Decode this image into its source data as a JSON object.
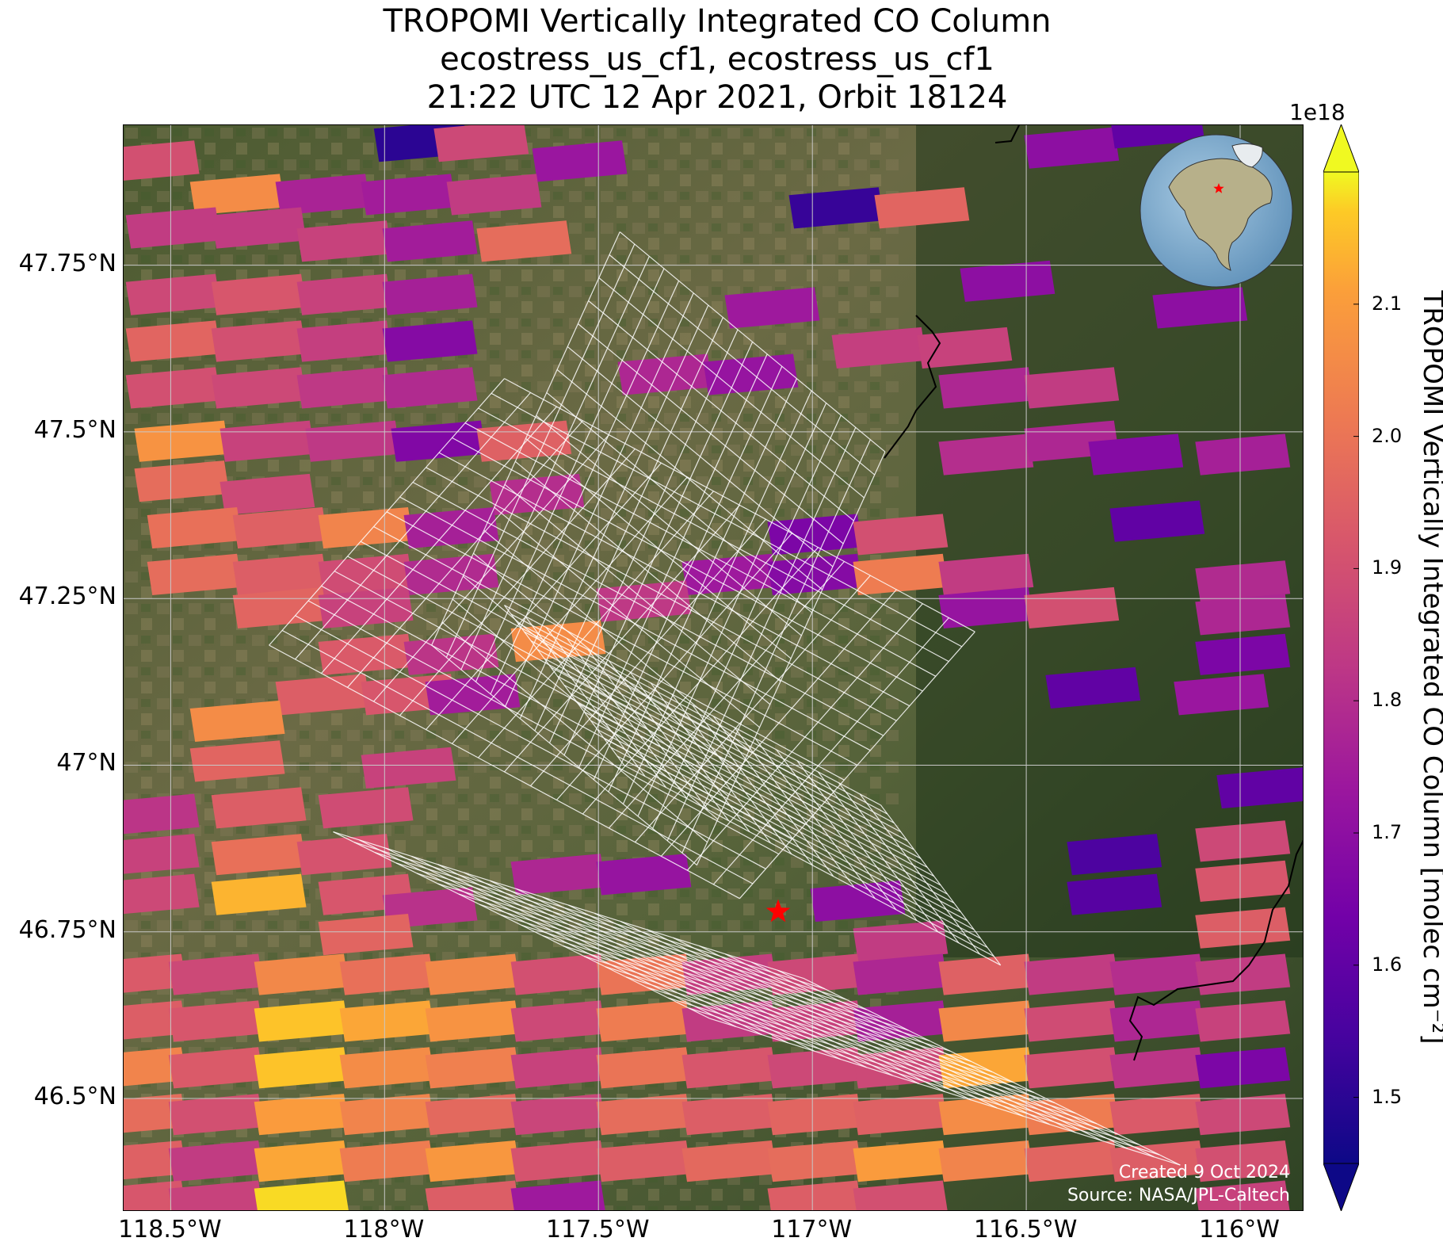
{
  "title": {
    "line1": "TROPOMI Vertically Integrated CO Column",
    "line2": "ecostress_us_cf1, ecostress_us_cf1",
    "line3": "21:22 UTC 12 Apr 2021, Orbit 18124"
  },
  "map": {
    "extent": {
      "lon_min": -118.61,
      "lon_max": -115.85,
      "lat_min": 46.33,
      "lat_max": 47.96
    },
    "background": "satellite imagery",
    "gridlines": true,
    "gridline_color": "#c8c8c8",
    "lat_ticks": [
      {
        "value": 47.75,
        "label": "47.75°N"
      },
      {
        "value": 47.5,
        "label": "47.5°N"
      },
      {
        "value": 47.25,
        "label": "47.25°N"
      },
      {
        "value": 47.0,
        "label": "47°N"
      },
      {
        "value": 46.75,
        "label": "46.75°N"
      },
      {
        "value": 46.5,
        "label": "46.5°N"
      }
    ],
    "lon_ticks": [
      {
        "value": -118.5,
        "label": "118.5°W"
      },
      {
        "value": -118.0,
        "label": "118°W"
      },
      {
        "value": -117.5,
        "label": "117.5°W"
      },
      {
        "value": -117.0,
        "label": "117°W"
      },
      {
        "value": -116.5,
        "label": "116.5°W"
      },
      {
        "value": -116.0,
        "label": "116°W"
      }
    ],
    "site_marker": {
      "lon": -117.08,
      "lat": 46.78,
      "symbol": "star",
      "color": "#ff0000"
    },
    "overlay_grid": "ECOSTRESS footprint grid (white outlines)"
  },
  "chart_data": {
    "type": "heatmap",
    "title": "TROPOMI Vertically Integrated CO Column",
    "xlabel": "",
    "ylabel": "",
    "colorbar_label": "TROPOMI Vertically Integrated CO Column [molec cm⁻²]",
    "colorbar_exponent": "1e18",
    "colormap": "plasma",
    "vmin": 1.45,
    "vmax": 2.2,
    "extend": "both",
    "colorbar_ticks": [
      1.5,
      1.6,
      1.7,
      1.8,
      1.9,
      2.0,
      2.1
    ],
    "colorbar_tick_labels": [
      "1.5",
      "1.6",
      "1.7",
      "1.8",
      "1.9",
      "2.0",
      "2.1"
    ],
    "pixel_lon_step": 0.21,
    "pixel_lat_step": 0.05,
    "pixels": [
      {
        "lon": -118.55,
        "lat": 47.9,
        "value": 1.9
      },
      {
        "lon": -118.35,
        "lat": 47.85,
        "value": 2.06
      },
      {
        "lon": -118.15,
        "lat": 47.85,
        "value": 1.77
      },
      {
        "lon": -117.95,
        "lat": 47.85,
        "value": 1.75
      },
      {
        "lon": -117.92,
        "lat": 47.93,
        "value": 1.5
      },
      {
        "lon": -117.78,
        "lat": 47.93,
        "value": 1.88
      },
      {
        "lon": -117.55,
        "lat": 47.9,
        "value": 1.73
      },
      {
        "lon": -117.75,
        "lat": 47.85,
        "value": 1.84
      },
      {
        "lon": -116.95,
        "lat": 47.83,
        "value": 1.52
      },
      {
        "lon": -116.75,
        "lat": 47.83,
        "value": 1.96
      },
      {
        "lon": -116.4,
        "lat": 47.92,
        "value": 1.7
      },
      {
        "lon": -116.2,
        "lat": 47.95,
        "value": 1.6
      },
      {
        "lon": -118.5,
        "lat": 47.8,
        "value": 1.84
      },
      {
        "lon": -118.3,
        "lat": 47.8,
        "value": 1.84
      },
      {
        "lon": -118.1,
        "lat": 47.78,
        "value": 1.86
      },
      {
        "lon": -117.9,
        "lat": 47.78,
        "value": 1.75
      },
      {
        "lon": -117.68,
        "lat": 47.78,
        "value": 1.98
      },
      {
        "lon": -118.5,
        "lat": 47.7,
        "value": 1.88
      },
      {
        "lon": -118.3,
        "lat": 47.7,
        "value": 1.92
      },
      {
        "lon": -118.1,
        "lat": 47.7,
        "value": 1.86
      },
      {
        "lon": -117.9,
        "lat": 47.7,
        "value": 1.76
      },
      {
        "lon": -117.1,
        "lat": 47.68,
        "value": 1.74
      },
      {
        "lon": -116.55,
        "lat": 47.72,
        "value": 1.7
      },
      {
        "lon": -116.1,
        "lat": 47.68,
        "value": 1.7
      },
      {
        "lon": -118.5,
        "lat": 47.63,
        "value": 1.96
      },
      {
        "lon": -118.3,
        "lat": 47.63,
        "value": 1.9
      },
      {
        "lon": -118.1,
        "lat": 47.63,
        "value": 1.85
      },
      {
        "lon": -117.9,
        "lat": 47.63,
        "value": 1.68
      },
      {
        "lon": -117.35,
        "lat": 47.58,
        "value": 1.78
      },
      {
        "lon": -117.15,
        "lat": 47.58,
        "value": 1.72
      },
      {
        "lon": -116.85,
        "lat": 47.62,
        "value": 1.85
      },
      {
        "lon": -116.65,
        "lat": 47.62,
        "value": 1.86
      },
      {
        "lon": -118.5,
        "lat": 47.56,
        "value": 1.9
      },
      {
        "lon": -118.3,
        "lat": 47.56,
        "value": 1.88
      },
      {
        "lon": -118.1,
        "lat": 47.56,
        "value": 1.83
      },
      {
        "lon": -117.9,
        "lat": 47.56,
        "value": 1.79
      },
      {
        "lon": -116.6,
        "lat": 47.56,
        "value": 1.78
      },
      {
        "lon": -116.4,
        "lat": 47.56,
        "value": 1.84
      },
      {
        "lon": -118.48,
        "lat": 47.48,
        "value": 2.08
      },
      {
        "lon": -118.28,
        "lat": 47.48,
        "value": 1.86
      },
      {
        "lon": -118.08,
        "lat": 47.48,
        "value": 1.83
      },
      {
        "lon": -117.88,
        "lat": 47.48,
        "value": 1.67
      },
      {
        "lon": -117.68,
        "lat": 47.48,
        "value": 1.95
      },
      {
        "lon": -116.6,
        "lat": 47.46,
        "value": 1.8
      },
      {
        "lon": -116.4,
        "lat": 47.48,
        "value": 1.78
      },
      {
        "lon": -116.25,
        "lat": 47.46,
        "value": 1.68
      },
      {
        "lon": -116.0,
        "lat": 47.46,
        "value": 1.76
      },
      {
        "lon": -118.48,
        "lat": 47.42,
        "value": 1.98
      },
      {
        "lon": -118.28,
        "lat": 47.4,
        "value": 1.88
      },
      {
        "lon": -117.65,
        "lat": 47.4,
        "value": 1.8
      },
      {
        "lon": -118.45,
        "lat": 47.35,
        "value": 1.99
      },
      {
        "lon": -118.25,
        "lat": 47.35,
        "value": 1.95
      },
      {
        "lon": -118.05,
        "lat": 47.35,
        "value": 2.04
      },
      {
        "lon": -117.85,
        "lat": 47.35,
        "value": 1.76
      },
      {
        "lon": -117.0,
        "lat": 47.34,
        "value": 1.66
      },
      {
        "lon": -116.8,
        "lat": 47.34,
        "value": 1.9
      },
      {
        "lon": -116.2,
        "lat": 47.36,
        "value": 1.6
      },
      {
        "lon": -118.45,
        "lat": 47.28,
        "value": 1.98
      },
      {
        "lon": -118.25,
        "lat": 47.28,
        "value": 1.94
      },
      {
        "lon": -118.05,
        "lat": 47.28,
        "value": 1.89
      },
      {
        "lon": -117.85,
        "lat": 47.28,
        "value": 1.79
      },
      {
        "lon": -117.2,
        "lat": 47.28,
        "value": 1.74
      },
      {
        "lon": -117.0,
        "lat": 47.28,
        "value": 1.68
      },
      {
        "lon": -116.8,
        "lat": 47.28,
        "value": 2.02
      },
      {
        "lon": -116.6,
        "lat": 47.28,
        "value": 1.84
      },
      {
        "lon": -116.0,
        "lat": 47.27,
        "value": 1.79
      },
      {
        "lon": -118.25,
        "lat": 47.23,
        "value": 1.96
      },
      {
        "lon": -118.05,
        "lat": 47.23,
        "value": 1.86
      },
      {
        "lon": -117.4,
        "lat": 47.24,
        "value": 1.83
      },
      {
        "lon": -116.6,
        "lat": 47.23,
        "value": 1.72
      },
      {
        "lon": -116.4,
        "lat": 47.23,
        "value": 1.9
      },
      {
        "lon": -116.0,
        "lat": 47.22,
        "value": 1.78
      },
      {
        "lon": -118.05,
        "lat": 47.16,
        "value": 1.93
      },
      {
        "lon": -117.85,
        "lat": 47.16,
        "value": 1.82
      },
      {
        "lon": -117.6,
        "lat": 47.18,
        "value": 2.06
      },
      {
        "lon": -118.15,
        "lat": 47.1,
        "value": 1.94
      },
      {
        "lon": -117.95,
        "lat": 47.1,
        "value": 1.92
      },
      {
        "lon": -117.8,
        "lat": 47.1,
        "value": 1.75
      },
      {
        "lon": -116.0,
        "lat": 47.16,
        "value": 1.66
      },
      {
        "lon": -116.35,
        "lat": 47.11,
        "value": 1.6
      },
      {
        "lon": -116.05,
        "lat": 47.1,
        "value": 1.73
      },
      {
        "lon": -118.35,
        "lat": 47.06,
        "value": 2.06
      },
      {
        "lon": -118.35,
        "lat": 47.0,
        "value": 1.96
      },
      {
        "lon": -117.95,
        "lat": 46.99,
        "value": 1.86
      },
      {
        "lon": -118.55,
        "lat": 46.92,
        "value": 1.82
      },
      {
        "lon": -118.3,
        "lat": 46.93,
        "value": 1.94
      },
      {
        "lon": -118.05,
        "lat": 46.93,
        "value": 1.89
      },
      {
        "lon": -115.95,
        "lat": 46.96,
        "value": 1.6
      },
      {
        "lon": -118.55,
        "lat": 46.86,
        "value": 1.86
      },
      {
        "lon": -118.3,
        "lat": 46.86,
        "value": 1.99
      },
      {
        "lon": -118.1,
        "lat": 46.86,
        "value": 1.91
      },
      {
        "lon": -117.6,
        "lat": 46.83,
        "value": 1.78
      },
      {
        "lon": -117.4,
        "lat": 46.83,
        "value": 1.72
      },
      {
        "lon": -116.3,
        "lat": 46.86,
        "value": 1.56
      },
      {
        "lon": -116.0,
        "lat": 46.88,
        "value": 1.88
      },
      {
        "lon": -118.55,
        "lat": 46.8,
        "value": 1.88
      },
      {
        "lon": -118.3,
        "lat": 46.8,
        "value": 2.14
      },
      {
        "lon": -118.05,
        "lat": 46.8,
        "value": 1.92
      },
      {
        "lon": -117.9,
        "lat": 46.78,
        "value": 1.81
      },
      {
        "lon": -116.9,
        "lat": 46.79,
        "value": 1.7
      },
      {
        "lon": -116.3,
        "lat": 46.8,
        "value": 1.58
      },
      {
        "lon": -116.0,
        "lat": 46.82,
        "value": 1.92
      },
      {
        "lon": -118.05,
        "lat": 46.74,
        "value": 1.96
      },
      {
        "lon": -116.8,
        "lat": 46.73,
        "value": 1.84
      },
      {
        "lon": -116.0,
        "lat": 46.75,
        "value": 1.94
      },
      {
        "lon": -118.58,
        "lat": 46.68,
        "value": 1.93
      },
      {
        "lon": -118.4,
        "lat": 46.68,
        "value": 1.88
      },
      {
        "lon": -118.2,
        "lat": 46.68,
        "value": 2.05
      },
      {
        "lon": -118.0,
        "lat": 46.68,
        "value": 1.99
      },
      {
        "lon": -117.8,
        "lat": 46.68,
        "value": 2.05
      },
      {
        "lon": -117.6,
        "lat": 46.68,
        "value": 1.9
      },
      {
        "lon": -117.4,
        "lat": 46.68,
        "value": 2.0
      },
      {
        "lon": -117.2,
        "lat": 46.68,
        "value": 1.85
      },
      {
        "lon": -117.0,
        "lat": 46.68,
        "value": 1.88
      },
      {
        "lon": -116.8,
        "lat": 46.68,
        "value": 1.78
      },
      {
        "lon": -116.6,
        "lat": 46.68,
        "value": 1.95
      },
      {
        "lon": -116.4,
        "lat": 46.68,
        "value": 1.84
      },
      {
        "lon": -116.2,
        "lat": 46.68,
        "value": 1.8
      },
      {
        "lon": -116.0,
        "lat": 46.68,
        "value": 1.84
      },
      {
        "lon": -118.58,
        "lat": 46.61,
        "value": 1.94
      },
      {
        "lon": -118.4,
        "lat": 46.61,
        "value": 1.92
      },
      {
        "lon": -118.2,
        "lat": 46.61,
        "value": 2.16
      },
      {
        "lon": -118.0,
        "lat": 46.61,
        "value": 2.12
      },
      {
        "lon": -117.8,
        "lat": 46.61,
        "value": 2.08
      },
      {
        "lon": -117.6,
        "lat": 46.61,
        "value": 1.88
      },
      {
        "lon": -117.4,
        "lat": 46.61,
        "value": 2.02
      },
      {
        "lon": -117.2,
        "lat": 46.61,
        "value": 1.84
      },
      {
        "lon": -117.0,
        "lat": 46.61,
        "value": 1.86
      },
      {
        "lon": -116.8,
        "lat": 46.61,
        "value": 1.76
      },
      {
        "lon": -116.6,
        "lat": 46.61,
        "value": 2.05
      },
      {
        "lon": -116.4,
        "lat": 46.61,
        "value": 1.89
      },
      {
        "lon": -116.2,
        "lat": 46.61,
        "value": 1.78
      },
      {
        "lon": -116.0,
        "lat": 46.61,
        "value": 1.86
      },
      {
        "lon": -118.58,
        "lat": 46.54,
        "value": 2.04
      },
      {
        "lon": -118.4,
        "lat": 46.54,
        "value": 1.93
      },
      {
        "lon": -118.2,
        "lat": 46.54,
        "value": 2.16
      },
      {
        "lon": -118.0,
        "lat": 46.54,
        "value": 2.06
      },
      {
        "lon": -117.8,
        "lat": 46.54,
        "value": 2.03
      },
      {
        "lon": -117.6,
        "lat": 46.54,
        "value": 1.86
      },
      {
        "lon": -117.4,
        "lat": 46.54,
        "value": 2.0
      },
      {
        "lon": -117.2,
        "lat": 46.54,
        "value": 1.92
      },
      {
        "lon": -117.0,
        "lat": 46.54,
        "value": 1.88
      },
      {
        "lon": -116.8,
        "lat": 46.54,
        "value": 1.88
      },
      {
        "lon": -116.6,
        "lat": 46.54,
        "value": 2.12
      },
      {
        "lon": -116.4,
        "lat": 46.54,
        "value": 1.9
      },
      {
        "lon": -116.2,
        "lat": 46.54,
        "value": 1.82
      },
      {
        "lon": -116.0,
        "lat": 46.54,
        "value": 1.66
      },
      {
        "lon": -118.58,
        "lat": 46.47,
        "value": 1.98
      },
      {
        "lon": -118.4,
        "lat": 46.47,
        "value": 1.9
      },
      {
        "lon": -118.2,
        "lat": 46.47,
        "value": 2.1
      },
      {
        "lon": -118.0,
        "lat": 46.47,
        "value": 2.04
      },
      {
        "lon": -117.8,
        "lat": 46.47,
        "value": 1.97
      },
      {
        "lon": -117.6,
        "lat": 46.47,
        "value": 1.87
      },
      {
        "lon": -117.4,
        "lat": 46.47,
        "value": 1.98
      },
      {
        "lon": -117.2,
        "lat": 46.47,
        "value": 1.94
      },
      {
        "lon": -117.0,
        "lat": 46.47,
        "value": 1.96
      },
      {
        "lon": -116.8,
        "lat": 46.47,
        "value": 1.95
      },
      {
        "lon": -116.6,
        "lat": 46.47,
        "value": 2.06
      },
      {
        "lon": -116.4,
        "lat": 46.47,
        "value": 2.02
      },
      {
        "lon": -116.2,
        "lat": 46.47,
        "value": 1.93
      },
      {
        "lon": -116.0,
        "lat": 46.47,
        "value": 1.88
      },
      {
        "lon": -118.58,
        "lat": 46.4,
        "value": 1.95
      },
      {
        "lon": -118.4,
        "lat": 46.4,
        "value": 1.84
      },
      {
        "lon": -118.2,
        "lat": 46.4,
        "value": 2.12
      },
      {
        "lon": -118.0,
        "lat": 46.4,
        "value": 2.02
      },
      {
        "lon": -117.8,
        "lat": 46.4,
        "value": 2.09
      },
      {
        "lon": -117.6,
        "lat": 46.4,
        "value": 1.91
      },
      {
        "lon": -117.4,
        "lat": 46.4,
        "value": 1.94
      },
      {
        "lon": -117.2,
        "lat": 46.4,
        "value": 1.97
      },
      {
        "lon": -117.0,
        "lat": 46.4,
        "value": 1.98
      },
      {
        "lon": -116.8,
        "lat": 46.4,
        "value": 2.1
      },
      {
        "lon": -116.6,
        "lat": 46.4,
        "value": 2.04
      },
      {
        "lon": -116.4,
        "lat": 46.4,
        "value": 1.96
      },
      {
        "lon": -116.2,
        "lat": 46.4,
        "value": 1.94
      },
      {
        "lon": -116.0,
        "lat": 46.4,
        "value": 1.9
      },
      {
        "lon": -118.58,
        "lat": 46.34,
        "value": 1.92
      },
      {
        "lon": -118.4,
        "lat": 46.34,
        "value": 1.86
      },
      {
        "lon": -118.2,
        "lat": 46.34,
        "value": 2.18
      },
      {
        "lon": -117.8,
        "lat": 46.34,
        "value": 1.94
      },
      {
        "lon": -117.6,
        "lat": 46.34,
        "value": 1.74
      },
      {
        "lon": -117.0,
        "lat": 46.34,
        "value": 1.94
      },
      {
        "lon": -116.8,
        "lat": 46.34,
        "value": 1.9
      },
      {
        "lon": -116.0,
        "lat": 46.34,
        "value": 1.86
      }
    ]
  },
  "colorbar": {
    "exponent_label": "1e18",
    "label": "TROPOMI Vertically Integrated CO Column [molec cm⁻²]",
    "ticks": [
      {
        "value": 2.1,
        "label": "2.1"
      },
      {
        "value": 2.0,
        "label": "2.0"
      },
      {
        "value": 1.9,
        "label": "1.9"
      },
      {
        "value": 1.8,
        "label": "1.8"
      },
      {
        "value": 1.7,
        "label": "1.7"
      },
      {
        "value": 1.6,
        "label": "1.6"
      },
      {
        "value": 1.5,
        "label": "1.5"
      }
    ]
  },
  "inset": {
    "type": "globe locator",
    "marker": {
      "symbol": "star",
      "color": "#ff0000"
    }
  },
  "credits": {
    "created": "Created 9 Oct 2024",
    "source": "Source: NASA/JPL-Caltech"
  }
}
